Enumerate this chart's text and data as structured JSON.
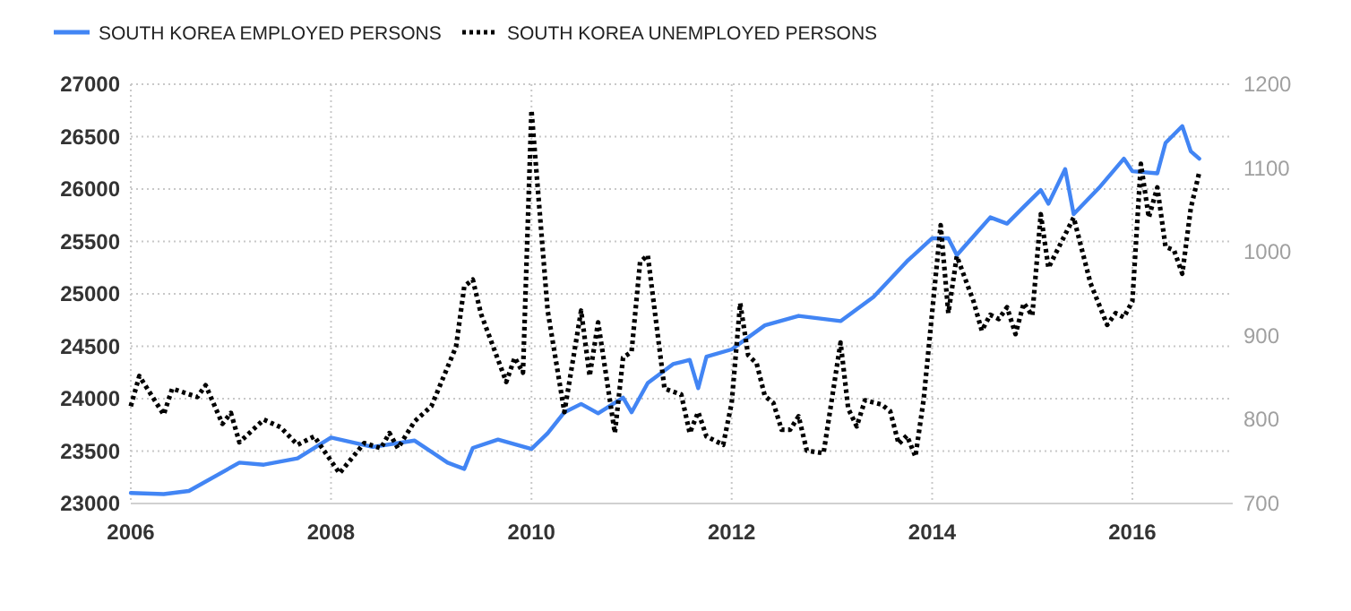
{
  "chart_data": {
    "type": "line",
    "legend": "top",
    "grid": true,
    "xlim": [
      "2006-01",
      "2017-01"
    ],
    "xticks": [
      {
        "value": "2006-01",
        "label": "2006"
      },
      {
        "value": "2008-01",
        "label": "2008"
      },
      {
        "value": "2010-01",
        "label": "2010"
      },
      {
        "value": "2012-01",
        "label": "2012"
      },
      {
        "value": "2014-01",
        "label": "2014"
      },
      {
        "value": "2016-01",
        "label": "2016"
      }
    ],
    "ylim": [
      23000,
      27000
    ],
    "yticks": [
      23000,
      23500,
      24000,
      24500,
      25000,
      25500,
      26000,
      26500,
      27000
    ],
    "y2lim": [
      700,
      1200
    ],
    "y2ticks": [
      700,
      800,
      900,
      1000,
      1100,
      1200
    ],
    "series": [
      {
        "name": "SOUTH KOREA EMPLOYED PERSONS",
        "color": "#4285f4",
        "line_style": "solid",
        "x": [
          "2006-01",
          "2006-05",
          "2006-08",
          "2007-02",
          "2007-05",
          "2007-09",
          "2008-01",
          "2008-06",
          "2008-11",
          "2009-03",
          "2009-05",
          "2009-06",
          "2009-09",
          "2010-01",
          "2010-03",
          "2010-05",
          "2010-07",
          "2010-09",
          "2010-12",
          "2011-01",
          "2011-03",
          "2011-06",
          "2011-08",
          "2011-09",
          "2011-10",
          "2012-01",
          "2012-05",
          "2012-09",
          "2013-02",
          "2013-06",
          "2013-10",
          "2014-01",
          "2014-03",
          "2014-04",
          "2014-08",
          "2014-10",
          "2014-12",
          "2015-02",
          "2015-03",
          "2015-05",
          "2015-06",
          "2015-09",
          "2015-12",
          "2016-01",
          "2016-04",
          "2016-05",
          "2016-07",
          "2016-08",
          "2016-09"
        ],
        "values": [
          23100,
          23090,
          23120,
          23390,
          23370,
          23430,
          23630,
          23540,
          23600,
          23390,
          23330,
          23530,
          23610,
          23520,
          23670,
          23870,
          23950,
          23860,
          24010,
          23870,
          24150,
          24330,
          24370,
          24100,
          24400,
          24470,
          24700,
          24790,
          24740,
          24970,
          25310,
          25530,
          25530,
          25370,
          25730,
          25670,
          25830,
          25990,
          25860,
          26190,
          25760,
          26010,
          26290,
          26170,
          26150,
          26440,
          26600,
          26360,
          26290
        ]
      },
      {
        "name": "SOUTH KOREA UNEMPLOYED PERSONS",
        "color": "#000000",
        "line_style": "dotted",
        "axis": "y2",
        "x": [
          "2006-01",
          "2006-02",
          "2006-05",
          "2006-06",
          "2006-09",
          "2006-10",
          "2006-12",
          "2007-01",
          "2007-02",
          "2007-05",
          "2007-07",
          "2007-09",
          "2007-11",
          "2008-02",
          "2008-05",
          "2008-07",
          "2008-08",
          "2008-09",
          "2008-11",
          "2009-01",
          "2009-04",
          "2009-05",
          "2009-06",
          "2009-07",
          "2009-10",
          "2009-11",
          "2009-12",
          "2010-01",
          "2010-03",
          "2010-05",
          "2010-07",
          "2010-08",
          "2010-09",
          "2010-11",
          "2010-12",
          "2011-01",
          "2011-02",
          "2011-03",
          "2011-05",
          "2011-07",
          "2011-08",
          "2011-09",
          "2011-10",
          "2011-12",
          "2012-01",
          "2012-02",
          "2012-03",
          "2012-04",
          "2012-05",
          "2012-06",
          "2012-07",
          "2012-08",
          "2012-09",
          "2012-10",
          "2012-12",
          "2013-02",
          "2013-03",
          "2013-04",
          "2013-05",
          "2013-07",
          "2013-08",
          "2013-09",
          "2013-10",
          "2013-11",
          "2013-12",
          "2014-02",
          "2014-03",
          "2014-04",
          "2014-06",
          "2014-07",
          "2014-08",
          "2014-09",
          "2014-10",
          "2014-11",
          "2014-12",
          "2015-01",
          "2015-02",
          "2015-03",
          "2015-06",
          "2015-08",
          "2015-10",
          "2015-11",
          "2015-12",
          "2016-01",
          "2016-02",
          "2016-03",
          "2016-04",
          "2016-05",
          "2016-06",
          "2016-07",
          "2016-08",
          "2016-09"
        ],
        "values": [
          816,
          852,
          806,
          837,
          827,
          841,
          795,
          808,
          773,
          800,
          791,
          770,
          780,
          736,
          772,
          766,
          784,
          766,
          798,
          816,
          887,
          959,
          967,
          926,
          845,
          874,
          856,
          1169,
          930,
          809,
          930,
          852,
          916,
          784,
          874,
          881,
          988,
          996,
          837,
          830,
          784,
          809,
          780,
          770,
          820,
          939,
          877,
          867,
          828,
          820,
          788,
          788,
          804,
          763,
          760,
          892,
          813,
          792,
          823,
          818,
          810,
          771,
          781,
          756,
          824,
          1032,
          927,
          995,
          941,
          906,
          925,
          920,
          934,
          902,
          939,
          924,
          1045,
          981,
          1041,
          963,
          913,
          927,
          922,
          941,
          1105,
          1041,
          1077,
          1006,
          1002,
          974,
          1052,
          1095
        ]
      }
    ]
  }
}
